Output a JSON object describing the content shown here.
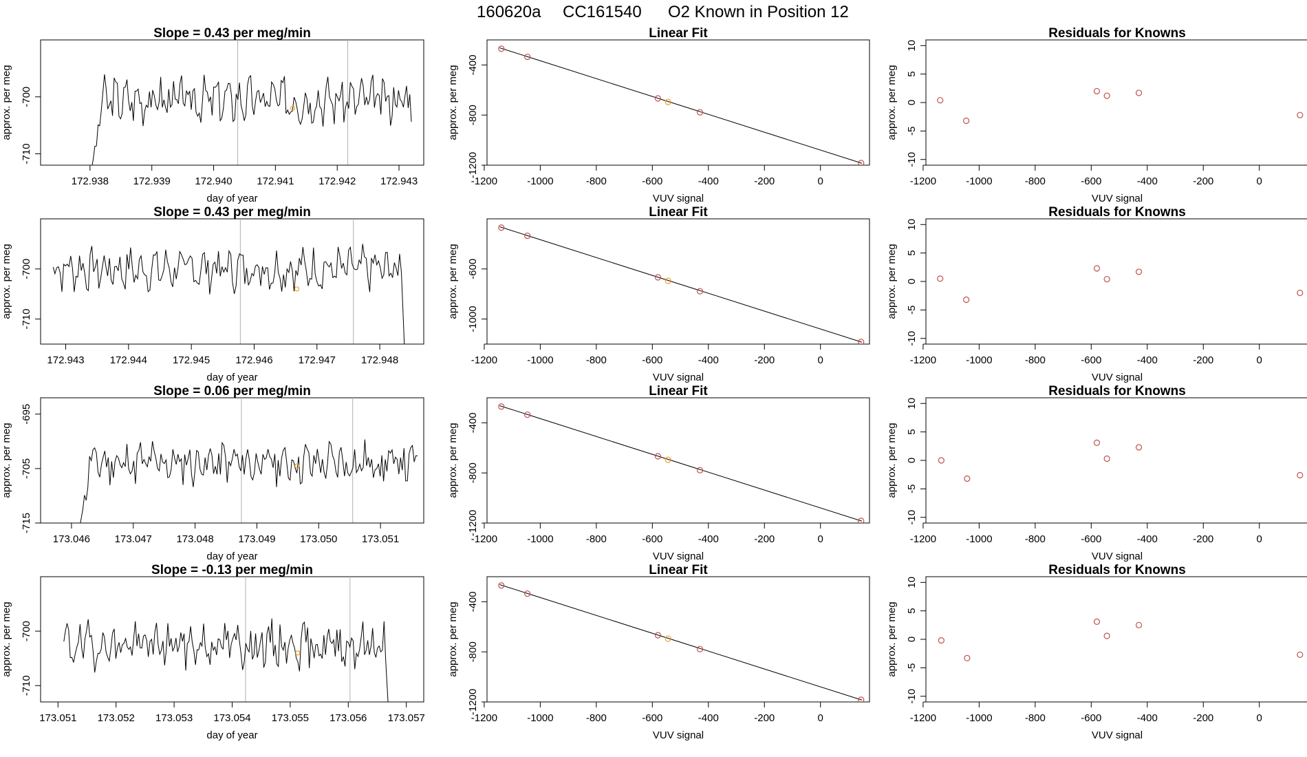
{
  "title": {
    "date": "160620a",
    "cylinder": "CC161540",
    "label": "O2 Known in Position  12"
  },
  "chart_data": [
    {
      "type": "line",
      "title": "Slope =  0.43  per meg/min",
      "xlabel": "day of year",
      "ylabel": "approx. per meg",
      "xlim": [
        172.9372,
        172.9434
      ],
      "ylim": [
        -712,
        -690
      ],
      "xticks": [
        "172.938",
        "172.939",
        "172.940",
        "172.941",
        "172.942",
        "172.943"
      ],
      "yticks": [
        "-700",
        "-710"
      ],
      "vlines": [
        172.94039,
        172.94217
      ],
      "highlight_point": [
        172.94128,
        -702
      ],
      "seed": 3,
      "start": 172.938,
      "end": 172.9432,
      "base": -700.5,
      "amp": 3.0,
      "dropStart": [
        172.938,
        172.9382
      ],
      "dropEnd": null
    },
    {
      "type": "scatter_fit",
      "title": "Linear Fit",
      "xlabel": "VUV signal",
      "ylabel": "approx. per meg",
      "xlim": [
        -1190,
        175
      ],
      "ylim": [
        -1200,
        -200
      ],
      "xticks": [
        "-1200",
        "-1000",
        "-800",
        "-600",
        "-400",
        "-200",
        "0"
      ],
      "yticks": [
        "-400",
        "-800",
        "-1200"
      ],
      "points": [
        [
          -1139,
          -270
        ],
        [
          -1046,
          -335
        ],
        [
          -580,
          -667
        ],
        [
          -544,
          -695
        ],
        [
          -430,
          -778
        ],
        [
          145,
          -1183
        ]
      ],
      "highlight_point": [
        -544,
        -695
      ],
      "fit": [
        [
          -1145,
          -263
        ],
        [
          148,
          -1185
        ]
      ]
    },
    {
      "type": "scatter",
      "title": "Residuals for Knowns",
      "xlabel": "VUV signal",
      "ylabel": "approx. per meg",
      "xlim": [
        -1190,
        175
      ],
      "ylim": [
        -11,
        11
      ],
      "xticks": [
        "-1200",
        "-1000",
        "-800",
        "-600",
        "-400",
        "-200",
        "0"
      ],
      "yticks": [
        "10",
        "5",
        "0",
        "-5",
        "-10"
      ],
      "points": [
        [
          -1139,
          0.4
        ],
        [
          -1046,
          -3.2
        ],
        [
          -580,
          2.0
        ],
        [
          -544,
          1.2
        ],
        [
          -430,
          1.7
        ],
        [
          145,
          -2.2
        ]
      ]
    },
    {
      "type": "line",
      "title": "Slope =  0.43  per meg/min",
      "xlabel": "day of year",
      "ylabel": "approx. per meg",
      "xlim": [
        172.9426,
        172.9487
      ],
      "ylim": [
        -715,
        -690
      ],
      "xticks": [
        "172.943",
        "172.944",
        "172.945",
        "172.946",
        "172.947",
        "172.948"
      ],
      "yticks": [
        "-700",
        "-710"
      ],
      "vlines": [
        172.94578,
        172.94758
      ],
      "highlight_point": [
        172.94668,
        -704
      ],
      "seed": 7,
      "start": 172.9428,
      "end": 172.9484,
      "base": -700.0,
      "amp": 3.2,
      "dropStart": null,
      "dropEnd": [
        172.94835,
        172.9484
      ]
    },
    {
      "type": "scatter_fit",
      "title": "Linear Fit",
      "xlabel": "VUV signal",
      "ylabel": "approx. per meg",
      "xlim": [
        -1190,
        175
      ],
      "ylim": [
        -1200,
        -200
      ],
      "xticks": [
        "-1200",
        "-1000",
        "-800",
        "-600",
        "-400",
        "-200",
        "0"
      ],
      "yticks": [
        "-600",
        "-1000"
      ],
      "points": [
        [
          -1139,
          -270
        ],
        [
          -1046,
          -335
        ],
        [
          -580,
          -667
        ],
        [
          -544,
          -695
        ],
        [
          -430,
          -778
        ],
        [
          145,
          -1183
        ]
      ],
      "highlight_point": [
        -544,
        -695
      ],
      "fit": [
        [
          -1145,
          -263
        ],
        [
          148,
          -1185
        ]
      ]
    },
    {
      "type": "scatter",
      "title": "Residuals for Knowns",
      "xlabel": "VUV signal",
      "ylabel": "approx. per meg",
      "xlim": [
        -1190,
        175
      ],
      "ylim": [
        -11,
        11
      ],
      "xticks": [
        "-1200",
        "-1000",
        "-800",
        "-600",
        "-400",
        "-200",
        "0"
      ],
      "yticks": [
        "10",
        "5",
        "0",
        "-5",
        "-10"
      ],
      "points": [
        [
          -1139,
          0.5
        ],
        [
          -1046,
          -3.2
        ],
        [
          -580,
          2.3
        ],
        [
          -544,
          0.4
        ],
        [
          -430,
          1.7
        ],
        [
          145,
          -2.0
        ]
      ]
    },
    {
      "type": "line",
      "title": "Slope =  0.06  per meg/min",
      "xlabel": "day of year",
      "ylabel": "approx. per meg",
      "xlim": [
        173.0455,
        173.0517
      ],
      "ylim": [
        -715,
        -692
      ],
      "xticks": [
        "173.046",
        "173.047",
        "173.048",
        "173.049",
        "173.050",
        "173.051"
      ],
      "yticks": [
        "-695",
        "-705",
        "-715"
      ],
      "vlines": [
        173.04875,
        173.05055
      ],
      "highlight_point": [
        173.04965,
        -704.5
      ],
      "seed": 11,
      "start": 173.0461,
      "end": 173.0516,
      "base": -704.0,
      "amp": 3.0,
      "dropStart": [
        173.0461,
        173.0463
      ],
      "dropEnd": null
    },
    {
      "type": "scatter_fit",
      "title": "Linear Fit",
      "xlabel": "VUV signal",
      "ylabel": "approx. per meg",
      "xlim": [
        -1190,
        175
      ],
      "ylim": [
        -1200,
        -200
      ],
      "xticks": [
        "-1200",
        "-1000",
        "-800",
        "-600",
        "-400",
        "-200",
        "0"
      ],
      "yticks": [
        "-400",
        "-800",
        "-1200"
      ],
      "points": [
        [
          -1139,
          -270
        ],
        [
          -1046,
          -335
        ],
        [
          -580,
          -667
        ],
        [
          -544,
          -695
        ],
        [
          -430,
          -778
        ],
        [
          145,
          -1183
        ]
      ],
      "highlight_point": [
        -544,
        -695
      ],
      "fit": [
        [
          -1145,
          -263
        ],
        [
          148,
          -1185
        ]
      ]
    },
    {
      "type": "scatter",
      "title": "Residuals for Knowns",
      "xlabel": "VUV signal",
      "ylabel": "approx. per meg",
      "xlim": [
        -1190,
        175
      ],
      "ylim": [
        -11,
        11
      ],
      "xticks": [
        "-1200",
        "-1000",
        "-800",
        "-600",
        "-400",
        "-200",
        "0"
      ],
      "yticks": [
        "10",
        "5",
        "0",
        "-5",
        "-10"
      ],
      "points": [
        [
          -1135,
          0.0
        ],
        [
          -1043,
          -3.2
        ],
        [
          -580,
          3.1
        ],
        [
          -544,
          0.3
        ],
        [
          -430,
          2.3
        ],
        [
          145,
          -2.6
        ]
      ]
    },
    {
      "type": "line",
      "title": "Slope =  -0.13  per meg/min",
      "xlabel": "day of year",
      "ylabel": "approx. per meg",
      "xlim": [
        173.0507,
        173.0573
      ],
      "ylim": [
        -713,
        -690
      ],
      "xticks": [
        "173.051",
        "173.052",
        "173.053",
        "173.054",
        "173.055",
        "173.056",
        "173.057"
      ],
      "yticks": [
        "-700",
        "-710"
      ],
      "vlines": [
        173.05423,
        173.05603
      ],
      "highlight_point": [
        173.05513,
        -704
      ],
      "seed": 19,
      "start": 173.0511,
      "end": 173.0567,
      "base": -702.5,
      "amp": 3.2,
      "dropStart": null,
      "dropEnd": [
        173.05662,
        173.0567
      ]
    },
    {
      "type": "scatter_fit",
      "title": "Linear Fit",
      "xlabel": "VUV signal",
      "ylabel": "approx. per meg",
      "xlim": [
        -1190,
        175
      ],
      "ylim": [
        -1200,
        -200
      ],
      "xticks": [
        "-1200",
        "-1000",
        "-800",
        "-600",
        "-400",
        "-200",
        "0"
      ],
      "yticks": [
        "-400",
        "-800",
        "-1200"
      ],
      "points": [
        [
          -1139,
          -270
        ],
        [
          -1046,
          -335
        ],
        [
          -580,
          -667
        ],
        [
          -544,
          -695
        ],
        [
          -430,
          -778
        ],
        [
          145,
          -1183
        ]
      ],
      "highlight_point": [
        -544,
        -695
      ],
      "fit": [
        [
          -1145,
          -263
        ],
        [
          148,
          -1185
        ]
      ]
    },
    {
      "type": "scatter",
      "title": "Residuals for Knowns",
      "xlabel": "VUV signal",
      "ylabel": "approx. per meg",
      "xlim": [
        -1190,
        175
      ],
      "ylim": [
        -11,
        11
      ],
      "xticks": [
        "-1200",
        "-1000",
        "-800",
        "-600",
        "-400",
        "-200",
        "0"
      ],
      "yticks": [
        "10",
        "5",
        "0",
        "-5",
        "-10"
      ],
      "points": [
        [
          -1135,
          -0.2
        ],
        [
          -1043,
          -3.3
        ],
        [
          -580,
          3.1
        ],
        [
          -544,
          0.6
        ],
        [
          -430,
          2.5
        ],
        [
          145,
          -2.7
        ]
      ]
    }
  ],
  "colors": {
    "line": "#000000",
    "point": "#c0504d",
    "highlight": "#f0a030",
    "vline": "#b0b0b0",
    "frame": "#000000"
  }
}
